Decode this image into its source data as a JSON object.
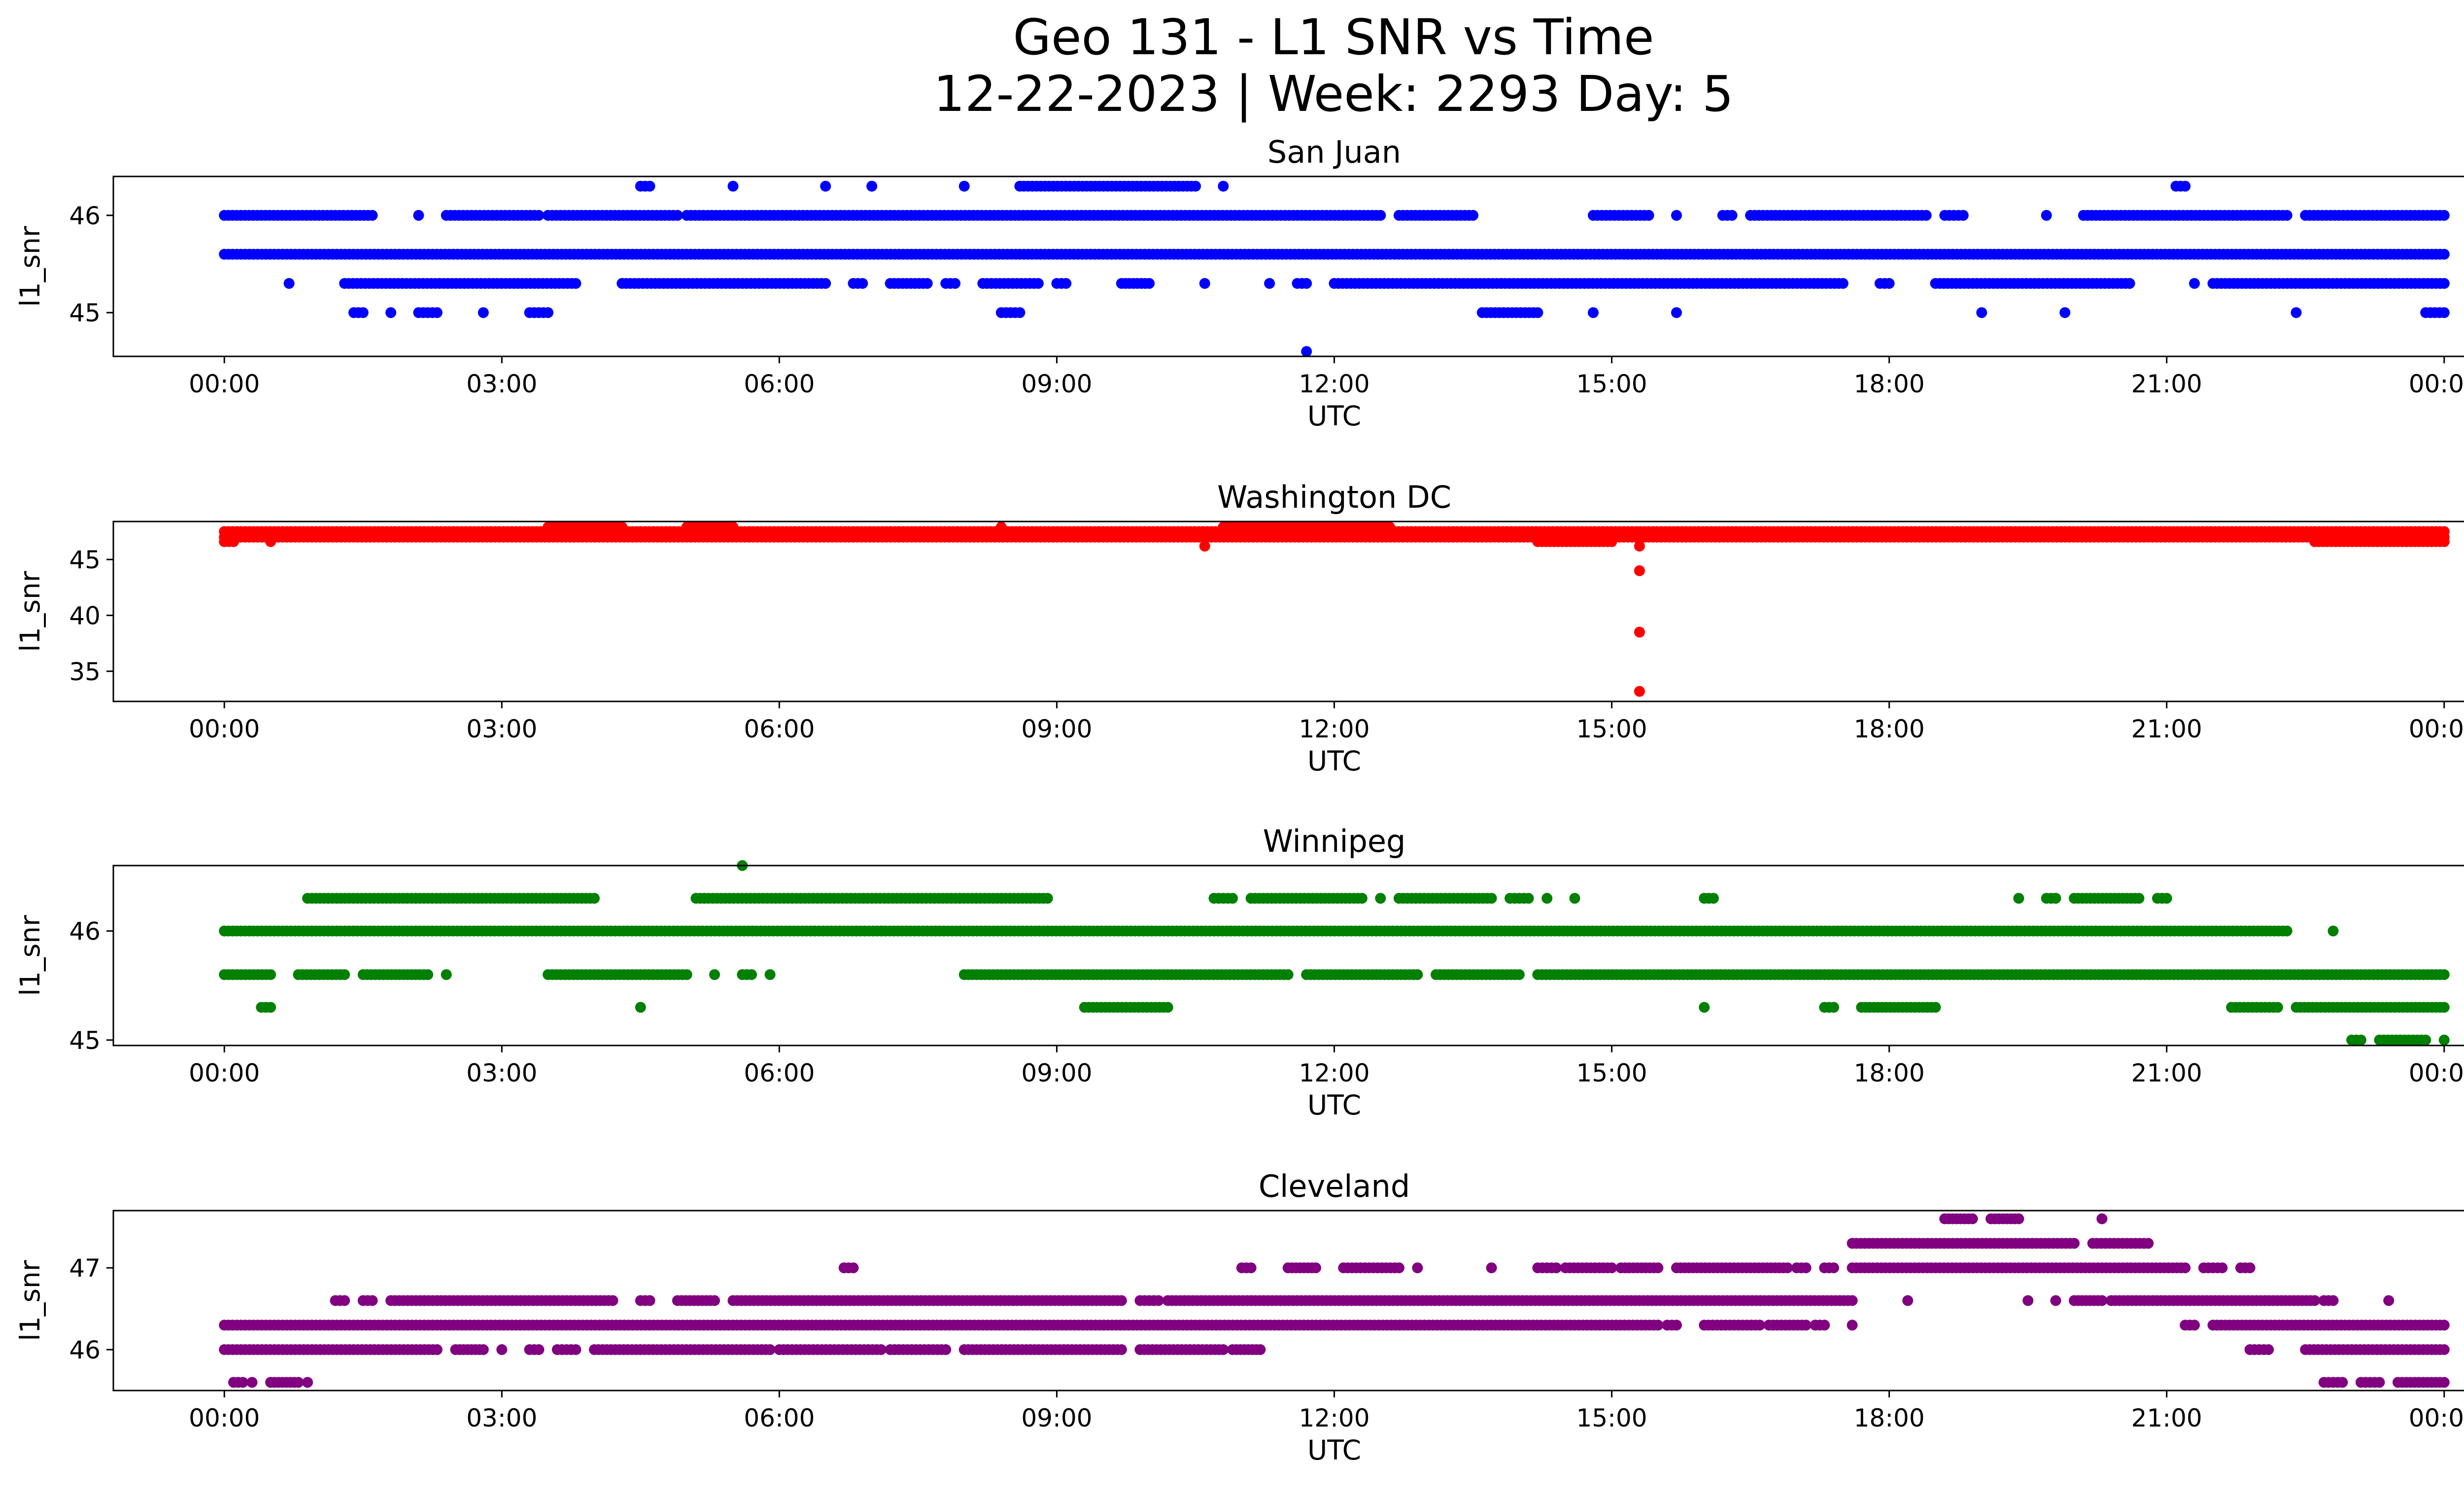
{
  "figure": {
    "title_line1": "Geo 131 - L1 SNR vs Time",
    "title_line2": "12-22-2023 | Week: 2293 Day: 5"
  },
  "chart_data": [
    {
      "type": "scatter",
      "title": "San Juan",
      "xlabel": "UTC",
      "ylabel": "l1_snr",
      "color": "#0000ff",
      "x_ticks": [
        "00:00",
        "03:00",
        "06:00",
        "09:00",
        "12:00",
        "15:00",
        "18:00",
        "21:00",
        "00:00"
      ],
      "xlim_hours": [
        -1.2,
        25.2
      ],
      "ylim": [
        44.55,
        46.4
      ],
      "y_ticks": [
        45,
        46
      ],
      "levels": [
        {
          "y": 46.3,
          "segments": [
            [
              4.5,
              4.6
            ],
            [
              5.5,
              5.5
            ],
            [
              6.5,
              6.5
            ],
            [
              7.0,
              7.0
            ],
            [
              8.0,
              8.0
            ],
            [
              8.6,
              10.5
            ],
            [
              10.8,
              10.8
            ],
            [
              21.1,
              21.2
            ]
          ]
        },
        {
          "y": 46.0,
          "segments": [
            [
              0.0,
              1.6
            ],
            [
              2.1,
              2.1
            ],
            [
              2.4,
              3.4
            ],
            [
              3.5,
              4.9
            ],
            [
              5.0,
              12.5
            ],
            [
              12.7,
              13.5
            ],
            [
              14.8,
              15.4
            ],
            [
              15.7,
              15.7
            ],
            [
              16.2,
              16.3
            ],
            [
              16.5,
              18.4
            ],
            [
              18.6,
              18.8
            ],
            [
              19.7,
              19.7
            ],
            [
              20.1,
              22.3
            ],
            [
              22.5,
              24.0
            ]
          ]
        },
        {
          "y": 45.6,
          "segments": [
            [
              0.0,
              24.0
            ]
          ]
        },
        {
          "y": 45.3,
          "segments": [
            [
              0.7,
              0.7
            ],
            [
              1.3,
              3.8
            ],
            [
              4.3,
              6.5
            ],
            [
              6.8,
              6.9
            ],
            [
              7.2,
              7.6
            ],
            [
              7.8,
              7.9
            ],
            [
              8.2,
              8.8
            ],
            [
              9.0,
              9.1
            ],
            [
              9.7,
              10.0
            ],
            [
              10.6,
              10.6
            ],
            [
              11.3,
              11.3
            ],
            [
              11.6,
              11.7
            ],
            [
              12.0,
              17.5
            ],
            [
              17.9,
              18.0
            ],
            [
              18.5,
              20.6
            ],
            [
              21.3,
              21.3
            ],
            [
              21.5,
              24.0
            ]
          ]
        },
        {
          "y": 45.0,
          "segments": [
            [
              1.4,
              1.5
            ],
            [
              1.8,
              1.8
            ],
            [
              2.1,
              2.3
            ],
            [
              2.8,
              2.8
            ],
            [
              3.3,
              3.5
            ],
            [
              8.4,
              8.6
            ],
            [
              13.6,
              14.2
            ],
            [
              14.8,
              14.8
            ],
            [
              15.7,
              15.7
            ],
            [
              19.0,
              19.0
            ],
            [
              19.9,
              19.9
            ],
            [
              22.4,
              22.4
            ],
            [
              23.8,
              24.0
            ]
          ]
        },
        {
          "y": 44.6,
          "segments": [
            [
              11.7,
              11.7
            ]
          ]
        }
      ]
    },
    {
      "type": "scatter",
      "title": "Washington DC",
      "xlabel": "UTC",
      "ylabel": "l1_snr",
      "color": "#ff0000",
      "x_ticks": [
        "00:00",
        "03:00",
        "06:00",
        "09:00",
        "12:00",
        "15:00",
        "18:00",
        "21:00",
        "00:00"
      ],
      "xlim_hours": [
        -1.2,
        25.2
      ],
      "ylim": [
        32.3,
        48.4
      ],
      "y_ticks": [
        35,
        40,
        45
      ],
      "levels": [
        {
          "y": 47.9,
          "segments": [
            [
              3.5,
              4.3
            ],
            [
              5.0,
              5.5
            ],
            [
              8.4,
              8.4
            ],
            [
              10.8,
              12.6
            ]
          ]
        },
        {
          "y": 47.5,
          "segments": [
            [
              0.0,
              24.0
            ]
          ]
        },
        {
          "y": 47.0,
          "segments": [
            [
              0.0,
              24.0
            ]
          ]
        },
        {
          "y": 46.6,
          "segments": [
            [
              0.0,
              0.1
            ],
            [
              0.5,
              0.5
            ],
            [
              14.2,
              15.0
            ],
            [
              22.6,
              24.0
            ]
          ]
        },
        {
          "y": 46.2,
          "segments": [
            [
              10.6,
              10.6
            ],
            [
              15.3,
              15.3
            ]
          ]
        },
        {
          "y": 44.0,
          "segments": [
            [
              15.3,
              15.3
            ]
          ]
        },
        {
          "y": 38.5,
          "segments": [
            [
              15.3,
              15.3
            ]
          ]
        },
        {
          "y": 33.2,
          "segments": [
            [
              15.3,
              15.3
            ]
          ]
        }
      ]
    },
    {
      "type": "scatter",
      "title": "Winnipeg",
      "xlabel": "UTC",
      "ylabel": "l1_snr",
      "color": "#008000",
      "x_ticks": [
        "00:00",
        "03:00",
        "06:00",
        "09:00",
        "12:00",
        "15:00",
        "18:00",
        "21:00",
        "00:00"
      ],
      "xlim_hours": [
        -1.2,
        25.2
      ],
      "ylim": [
        44.95,
        46.6
      ],
      "y_ticks": [
        45,
        46
      ],
      "levels": [
        {
          "y": 46.6,
          "segments": [
            [
              5.6,
              5.6
            ]
          ]
        },
        {
          "y": 46.3,
          "segments": [
            [
              0.9,
              4.0
            ],
            [
              5.1,
              8.9
            ],
            [
              10.7,
              10.9
            ],
            [
              11.1,
              12.3
            ],
            [
              12.5,
              12.5
            ],
            [
              12.7,
              13.7
            ],
            [
              13.9,
              14.1
            ],
            [
              14.3,
              14.3
            ],
            [
              14.6,
              14.6
            ],
            [
              16.0,
              16.1
            ],
            [
              19.4,
              19.4
            ],
            [
              19.7,
              19.8
            ],
            [
              20.0,
              20.7
            ],
            [
              20.9,
              21.0
            ]
          ]
        },
        {
          "y": 46.0,
          "segments": [
            [
              0.0,
              22.3
            ],
            [
              22.8,
              22.8
            ]
          ]
        },
        {
          "y": 45.6,
          "segments": [
            [
              0.0,
              0.5
            ],
            [
              0.8,
              1.3
            ],
            [
              1.5,
              2.2
            ],
            [
              2.4,
              2.4
            ],
            [
              3.5,
              5.0
            ],
            [
              5.3,
              5.3
            ],
            [
              5.6,
              5.7
            ],
            [
              5.9,
              5.9
            ],
            [
              8.0,
              11.5
            ],
            [
              11.7,
              12.9
            ],
            [
              13.1,
              14.0
            ],
            [
              14.2,
              24.0
            ]
          ]
        },
        {
          "y": 45.3,
          "segments": [
            [
              0.4,
              0.5
            ],
            [
              4.5,
              4.5
            ],
            [
              9.3,
              10.2
            ],
            [
              16.0,
              16.0
            ],
            [
              17.3,
              17.4
            ],
            [
              17.7,
              18.5
            ],
            [
              21.7,
              22.2
            ],
            [
              22.4,
              24.0
            ]
          ]
        },
        {
          "y": 45.0,
          "segments": [
            [
              23.0,
              23.1
            ],
            [
              23.3,
              23.8
            ],
            [
              24.0,
              24.0
            ]
          ]
        }
      ]
    },
    {
      "type": "scatter",
      "title": "Cleveland",
      "xlabel": "UTC",
      "ylabel": "l1_snr",
      "color": "#800080",
      "x_ticks": [
        "00:00",
        "03:00",
        "06:00",
        "09:00",
        "12:00",
        "15:00",
        "18:00",
        "21:00",
        "00:00"
      ],
      "xlim_hours": [
        -1.2,
        25.2
      ],
      "ylim": [
        45.5,
        47.7
      ],
      "y_ticks": [
        46,
        47
      ],
      "levels": [
        {
          "y": 47.6,
          "segments": [
            [
              18.6,
              18.9
            ],
            [
              19.1,
              19.4
            ],
            [
              20.3,
              20.3
            ]
          ]
        },
        {
          "y": 47.3,
          "segments": [
            [
              17.6,
              20.0
            ],
            [
              20.2,
              20.8
            ]
          ]
        },
        {
          "y": 47.0,
          "segments": [
            [
              6.7,
              6.8
            ],
            [
              11.0,
              11.1
            ],
            [
              11.5,
              11.8
            ],
            [
              12.1,
              12.7
            ],
            [
              12.9,
              12.9
            ],
            [
              13.7,
              13.7
            ],
            [
              14.2,
              14.4
            ],
            [
              14.5,
              15.0
            ],
            [
              15.1,
              15.5
            ],
            [
              15.7,
              16.9
            ],
            [
              17.0,
              17.1
            ],
            [
              17.3,
              17.4
            ],
            [
              17.6,
              21.2
            ],
            [
              21.4,
              21.6
            ],
            [
              21.8,
              21.9
            ]
          ]
        },
        {
          "y": 46.6,
          "segments": [
            [
              1.2,
              1.3
            ],
            [
              1.5,
              1.6
            ],
            [
              1.8,
              4.2
            ],
            [
              4.5,
              4.6
            ],
            [
              4.9,
              5.3
            ],
            [
              5.5,
              9.7
            ],
            [
              9.9,
              10.1
            ],
            [
              10.2,
              17.6
            ],
            [
              18.2,
              18.2
            ],
            [
              19.5,
              19.5
            ],
            [
              19.8,
              19.8
            ],
            [
              20.0,
              20.3
            ],
            [
              20.4,
              22.6
            ],
            [
              22.7,
              22.8
            ],
            [
              23.4,
              23.4
            ]
          ]
        },
        {
          "y": 46.3,
          "segments": [
            [
              0.0,
              15.5
            ],
            [
              15.6,
              15.7
            ],
            [
              16.0,
              16.6
            ],
            [
              16.7,
              17.1
            ],
            [
              17.2,
              17.3
            ],
            [
              17.6,
              17.6
            ],
            [
              21.2,
              21.3
            ],
            [
              21.5,
              24.0
            ]
          ]
        },
        {
          "y": 46.0,
          "segments": [
            [
              0.0,
              2.3
            ],
            [
              2.5,
              2.8
            ],
            [
              3.0,
              3.0
            ],
            [
              3.3,
              3.4
            ],
            [
              3.6,
              3.8
            ],
            [
              4.0,
              5.9
            ],
            [
              6.0,
              7.1
            ],
            [
              7.2,
              7.8
            ],
            [
              8.0,
              9.7
            ],
            [
              9.9,
              10.8
            ],
            [
              10.9,
              11.2
            ],
            [
              21.9,
              22.1
            ],
            [
              22.5,
              24.0
            ]
          ]
        },
        {
          "y": 45.6,
          "segments": [
            [
              0.1,
              0.2
            ],
            [
              0.3,
              0.3
            ],
            [
              0.5,
              0.8
            ],
            [
              0.9,
              0.9
            ],
            [
              22.7,
              22.9
            ],
            [
              23.1,
              23.3
            ],
            [
              23.5,
              24.0
            ]
          ]
        }
      ]
    }
  ]
}
